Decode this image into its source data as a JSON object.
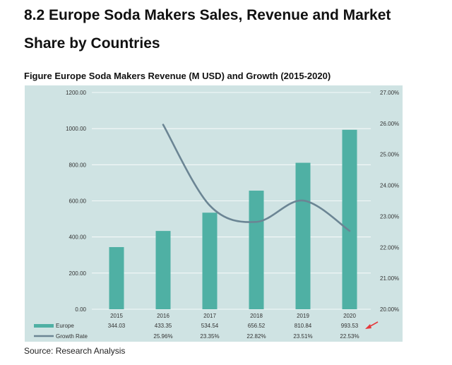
{
  "section": {
    "title": "8.2 Europe Soda Makers Sales, Revenue and Market Share by Countries"
  },
  "figure": {
    "caption": "Figure Europe Soda Makers Revenue (M USD) and Growth (2015-2020)"
  },
  "source": "Source: Research Analysis",
  "colors": {
    "plot_bg": "#cfe3e3",
    "bar": "#4fb0a4",
    "line": "#6b8594",
    "grid": "#ffffff",
    "annotation_arrow": "#e5393c"
  },
  "chart_data": {
    "type": "bar",
    "categories": [
      "2015",
      "2016",
      "2017",
      "2018",
      "2019",
      "2020"
    ],
    "series": [
      {
        "name": "Europe",
        "type": "bar",
        "axis": "left",
        "values": [
          344.03,
          433.35,
          534.54,
          656.52,
          810.84,
          993.53
        ],
        "labels": [
          "344.03",
          "433.35",
          "534.54",
          "656.52",
          "810.84",
          "993.53"
        ]
      },
      {
        "name": "Growth Rate",
        "type": "line",
        "axis": "right",
        "values": [
          null,
          25.96,
          23.35,
          22.82,
          23.51,
          22.53
        ],
        "labels": [
          "",
          "25.96%",
          "23.35%",
          "22.82%",
          "23.51%",
          "22.53%"
        ]
      }
    ],
    "y_left": {
      "min": 0,
      "max": 1200,
      "ticks": [
        "0.00",
        "200.00",
        "400.00",
        "600.00",
        "800.00",
        "1000.00",
        "1200.00"
      ]
    },
    "y_right": {
      "min": 20,
      "max": 27,
      "ticks": [
        "20.00%",
        "21.00%",
        "22.00%",
        "23.00%",
        "24.00%",
        "25.00%",
        "26.00%",
        "27.00%"
      ]
    },
    "legend_placement": "data table below plot",
    "grid": true
  }
}
